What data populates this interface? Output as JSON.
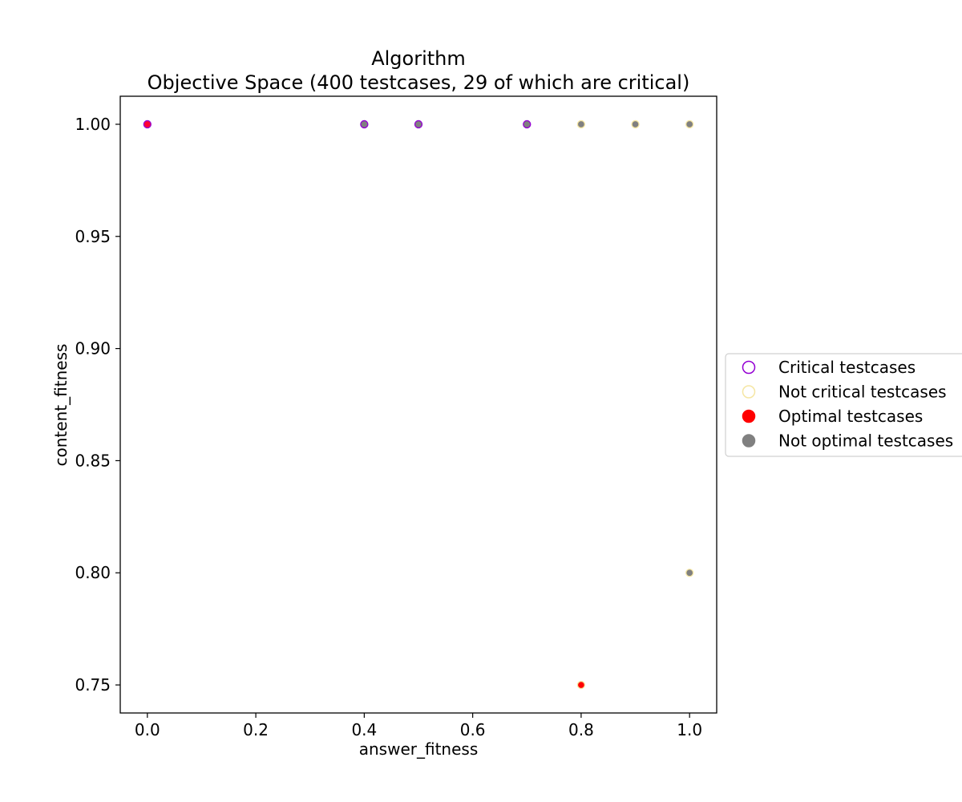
{
  "chart_data": {
    "type": "scatter",
    "title_line1": "Algorithm",
    "title_line2": "Objective Space (400 testcases, 29 of which are critical)",
    "xlabel": "answer_fitness",
    "ylabel": "content_fitness",
    "xlim": [
      -0.05,
      1.05
    ],
    "ylim": [
      0.7375,
      1.0125
    ],
    "x_ticks": [
      0.0,
      0.2,
      0.4,
      0.6,
      0.8,
      1.0
    ],
    "x_tick_labels": [
      "0.0",
      "0.2",
      "0.4",
      "0.6",
      "0.8",
      "1.0"
    ],
    "y_ticks": [
      0.75,
      0.8,
      0.85,
      0.9,
      0.95,
      1.0
    ],
    "y_tick_labels": [
      "0.75",
      "0.80",
      "0.85",
      "0.90",
      "0.95",
      "1.00"
    ],
    "grid": false,
    "legend_placement": "outside right, center",
    "legend": [
      {
        "label": "Critical testcases",
        "edge": "#9400d3",
        "fill": "none"
      },
      {
        "label": "Not critical testcases",
        "edge": "#f5e6a3",
        "fill": "none"
      },
      {
        "label": "Optimal testcases",
        "edge": "#ff0000",
        "fill": "#ff0000"
      },
      {
        "label": "Not optimal testcases",
        "edge": "#808080",
        "fill": "#808080"
      }
    ],
    "points": [
      {
        "x": 0.0,
        "y": 1.0,
        "critical": true,
        "optimal": true
      },
      {
        "x": 0.4,
        "y": 1.0,
        "critical": true,
        "optimal": false
      },
      {
        "x": 0.5,
        "y": 1.0,
        "critical": true,
        "optimal": false
      },
      {
        "x": 0.7,
        "y": 1.0,
        "critical": true,
        "optimal": false
      },
      {
        "x": 0.8,
        "y": 1.0,
        "critical": false,
        "optimal": false
      },
      {
        "x": 0.9,
        "y": 1.0,
        "critical": false,
        "optimal": false
      },
      {
        "x": 1.0,
        "y": 1.0,
        "critical": false,
        "optimal": false
      },
      {
        "x": 1.0,
        "y": 0.8,
        "critical": false,
        "optimal": false
      },
      {
        "x": 0.8,
        "y": 0.75,
        "critical": false,
        "optimal": true
      }
    ],
    "colors": {
      "critical_edge": "#9400d3",
      "not_critical_edge": "#f5e6a3",
      "optimal_fill": "#ff0000",
      "not_optimal_fill": "#808080",
      "optimal_critical_fill": "#ff0033"
    }
  }
}
